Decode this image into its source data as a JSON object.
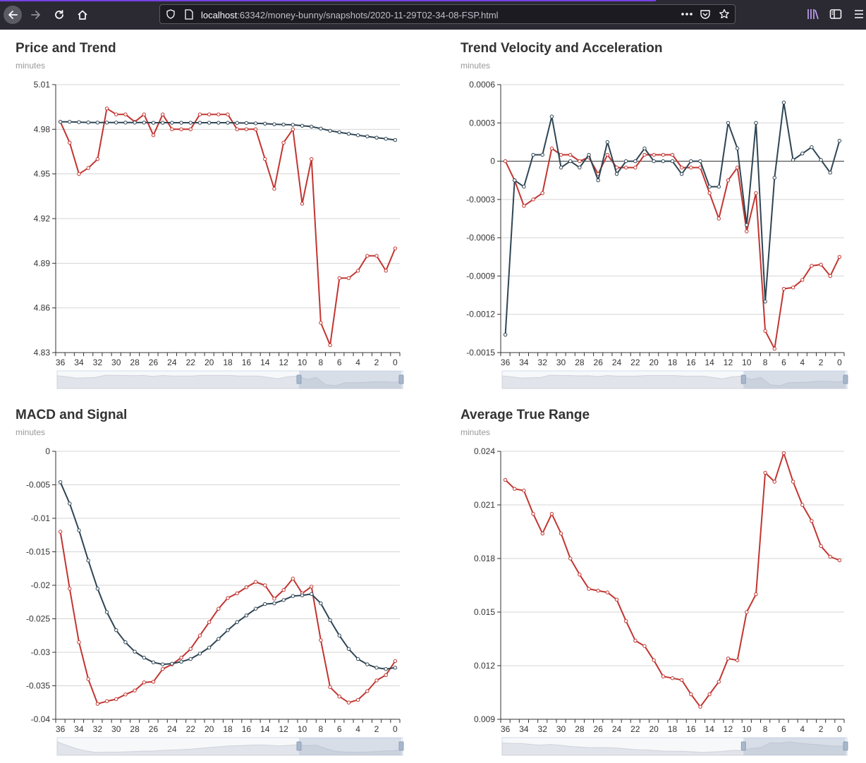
{
  "browser": {
    "url_host": "localhost",
    "url_rest": ":63342/money-bunny/snapshots/2020-11-29T02-34-08-FSP.html",
    "accent": "#7542e5"
  },
  "colors": {
    "red": "#c23531",
    "dark": "#2f4554",
    "grid": "#d5d5d5",
    "axis": "#333333"
  },
  "chart_data": [
    {
      "type": "line",
      "title": "Price and Trend",
      "ylabel": "minutes",
      "ylim": [
        4.83,
        5.01
      ],
      "yticks": [
        4.83,
        4.86,
        4.89,
        4.92,
        4.95,
        4.98,
        5.01
      ],
      "ytick_labels": [
        "4.83",
        "4.86",
        "4.89",
        "4.92",
        "4.95",
        "4.98",
        "5.01"
      ],
      "categories": [
        "36",
        "35",
        "34",
        "33",
        "32",
        "31",
        "30",
        "29",
        "28",
        "27",
        "26",
        "25",
        "24",
        "23",
        "22",
        "21",
        "20",
        "19",
        "18",
        "17",
        "16",
        "15",
        "14",
        "13",
        "12",
        "11",
        "10",
        "9",
        "8",
        "7",
        "6",
        "5",
        "4",
        "3",
        "2",
        "1",
        "0"
      ],
      "xtick_labels": [
        "36",
        "34",
        "32",
        "30",
        "28",
        "26",
        "24",
        "22",
        "20",
        "18",
        "16",
        "14",
        "12",
        "10",
        "8",
        "6",
        "4",
        "2",
        "0"
      ],
      "series": [
        {
          "color": "#c23531",
          "values": [
            4.985,
            4.971,
            4.95,
            4.954,
            4.96,
            4.994,
            4.99,
            4.99,
            4.985,
            4.99,
            4.976,
            4.99,
            4.98,
            4.98,
            4.98,
            4.99,
            4.99,
            4.99,
            4.99,
            4.98,
            4.98,
            4.98,
            4.96,
            4.94,
            4.971,
            4.98,
            4.93,
            4.96,
            4.85,
            4.835,
            4.88,
            4.88,
            4.885,
            4.895,
            4.895,
            4.885,
            4.9
          ]
        },
        {
          "color": "#2f4554",
          "values": [
            4.985,
            4.985,
            4.9848,
            4.9846,
            4.9845,
            4.9845,
            4.9845,
            4.9845,
            4.9845,
            4.9845,
            4.9844,
            4.9844,
            4.9844,
            4.9844,
            4.9844,
            4.9844,
            4.9844,
            4.9844,
            4.9844,
            4.9843,
            4.9842,
            4.984,
            4.9838,
            4.9834,
            4.9832,
            4.983,
            4.9824,
            4.9818,
            4.9805,
            4.979,
            4.978,
            4.977,
            4.976,
            4.9752,
            4.9744,
            4.9736,
            4.9728
          ]
        }
      ]
    },
    {
      "type": "line",
      "title": "Trend Velocity and Acceleration",
      "ylabel": "minutes",
      "ylim": [
        -0.0015,
        0.0006
      ],
      "yticks": [
        -0.0015,
        -0.0012,
        -0.0009,
        -0.0006,
        -0.0003,
        0,
        0.0003,
        0.0006
      ],
      "ytick_labels": [
        "-0.0015",
        "-0.0012",
        "-0.0009",
        "-0.0006",
        "-0.0003",
        "0",
        "0.0003",
        "0.0006"
      ],
      "categories": [
        "36",
        "35",
        "34",
        "33",
        "32",
        "31",
        "30",
        "29",
        "28",
        "27",
        "26",
        "25",
        "24",
        "23",
        "22",
        "21",
        "20",
        "19",
        "18",
        "17",
        "16",
        "15",
        "14",
        "13",
        "12",
        "11",
        "10",
        "9",
        "8",
        "7",
        "6",
        "5",
        "4",
        "3",
        "2",
        "1",
        "0"
      ],
      "xtick_labels": [
        "36",
        "34",
        "32",
        "30",
        "28",
        "26",
        "24",
        "22",
        "20",
        "18",
        "16",
        "14",
        "12",
        "10",
        "8",
        "6",
        "4",
        "2",
        "0"
      ],
      "series": [
        {
          "color": "#c23531",
          "values": [
            0.0,
            -0.00015,
            -0.00035,
            -0.0003,
            -0.00025,
            0.0001,
            5e-05,
            5e-05,
            0.0,
            3e-05,
            -0.0001,
            5e-05,
            -5e-05,
            -5e-05,
            -5e-05,
            5e-05,
            5e-05,
            5e-05,
            5e-05,
            -5e-05,
            -5e-05,
            -5e-05,
            -0.00025,
            -0.00045,
            -0.00015,
            -5e-05,
            -0.00055,
            -0.00025,
            -0.00133,
            -0.00147,
            -0.001,
            -0.00099,
            -0.00093,
            -0.00082,
            -0.00081,
            -0.0009,
            -0.00075
          ]
        },
        {
          "color": "#2f4554",
          "values": [
            -0.00136,
            -0.00015,
            -0.0002,
            5e-05,
            5e-05,
            0.00035,
            -5e-05,
            0.0,
            -5e-05,
            5e-05,
            -0.00015,
            0.00015,
            -0.0001,
            0.0,
            0.0,
            0.0001,
            0.0,
            0.0,
            0.0,
            -0.0001,
            0.0,
            0.0,
            -0.0002,
            -0.0002,
            0.0003,
            0.0001,
            -0.0005,
            0.0003,
            -0.0011,
            -0.00013,
            0.00046,
            1e-05,
            6e-05,
            0.00011,
            1e-05,
            -9e-05,
            0.00016
          ]
        }
      ]
    },
    {
      "type": "line",
      "title": "MACD and Signal",
      "ylabel": "minutes",
      "ylim": [
        -0.04,
        0
      ],
      "yticks": [
        -0.04,
        -0.035,
        -0.03,
        -0.025,
        -0.02,
        -0.015,
        -0.01,
        -0.005,
        0
      ],
      "ytick_labels": [
        "-0.04",
        "-0.035",
        "-0.03",
        "-0.025",
        "-0.02",
        "-0.015",
        "-0.01",
        "-0.005",
        "0"
      ],
      "categories": [
        "36",
        "35",
        "34",
        "33",
        "32",
        "31",
        "30",
        "29",
        "28",
        "27",
        "26",
        "25",
        "24",
        "23",
        "22",
        "21",
        "20",
        "19",
        "18",
        "17",
        "16",
        "15",
        "14",
        "13",
        "12",
        "11",
        "10",
        "9",
        "8",
        "7",
        "6",
        "5",
        "4",
        "3",
        "2",
        "1",
        "0"
      ],
      "xtick_labels": [
        "36",
        "34",
        "32",
        "30",
        "28",
        "26",
        "24",
        "22",
        "20",
        "18",
        "16",
        "14",
        "12",
        "10",
        "8",
        "6",
        "4",
        "2",
        "0"
      ],
      "series": [
        {
          "color": "#c23531",
          "values": [
            -0.012,
            -0.0205,
            -0.0285,
            -0.034,
            -0.0377,
            -0.0373,
            -0.037,
            -0.0363,
            -0.0357,
            -0.0345,
            -0.0344,
            -0.0325,
            -0.0318,
            -0.0308,
            -0.0295,
            -0.0275,
            -0.0255,
            -0.0235,
            -0.0219,
            -0.0212,
            -0.0203,
            -0.0195,
            -0.02,
            -0.022,
            -0.0207,
            -0.019,
            -0.0212,
            -0.0202,
            -0.0282,
            -0.0352,
            -0.0366,
            -0.0375,
            -0.0371,
            -0.0358,
            -0.0342,
            -0.0334,
            -0.0313
          ]
        },
        {
          "color": "#2f4554",
          "values": [
            -0.0046,
            -0.0078,
            -0.0118,
            -0.0163,
            -0.0205,
            -0.024,
            -0.0267,
            -0.0285,
            -0.0299,
            -0.0308,
            -0.0315,
            -0.0318,
            -0.0317,
            -0.0314,
            -0.031,
            -0.0302,
            -0.0293,
            -0.028,
            -0.0267,
            -0.0255,
            -0.0245,
            -0.0235,
            -0.0228,
            -0.0227,
            -0.0222,
            -0.0216,
            -0.0215,
            -0.0213,
            -0.0227,
            -0.0252,
            -0.0275,
            -0.0295,
            -0.031,
            -0.0318,
            -0.0323,
            -0.0325,
            -0.0323
          ]
        }
      ]
    },
    {
      "type": "line",
      "title": "Average True Range",
      "ylabel": "minutes",
      "ylim": [
        0.009,
        0.024
      ],
      "yticks": [
        0.009,
        0.012,
        0.015,
        0.018,
        0.021,
        0.024
      ],
      "ytick_labels": [
        "0.009",
        "0.012",
        "0.015",
        "0.018",
        "0.021",
        "0.024"
      ],
      "categories": [
        "36",
        "35",
        "34",
        "33",
        "32",
        "31",
        "30",
        "29",
        "28",
        "27",
        "26",
        "25",
        "24",
        "23",
        "22",
        "21",
        "20",
        "19",
        "18",
        "17",
        "16",
        "15",
        "14",
        "13",
        "12",
        "11",
        "10",
        "9",
        "8",
        "7",
        "6",
        "5",
        "4",
        "3",
        "2",
        "1",
        "0"
      ],
      "xtick_labels": [
        "36",
        "34",
        "32",
        "30",
        "28",
        "26",
        "24",
        "22",
        "20",
        "18",
        "16",
        "14",
        "12",
        "10",
        "8",
        "6",
        "4",
        "2",
        "0"
      ],
      "series": [
        {
          "color": "#c23531",
          "values": [
            0.0224,
            0.0219,
            0.0218,
            0.0205,
            0.0194,
            0.0205,
            0.0194,
            0.018,
            0.0171,
            0.0163,
            0.0162,
            0.0161,
            0.0157,
            0.0145,
            0.0134,
            0.0131,
            0.0123,
            0.0114,
            0.0113,
            0.0112,
            0.0104,
            0.0097,
            0.0104,
            0.0111,
            0.0124,
            0.0123,
            0.015,
            0.016,
            0.0228,
            0.0223,
            0.0239,
            0.0223,
            0.021,
            0.0201,
            0.0187,
            0.0181,
            0.0179
          ]
        }
      ]
    }
  ]
}
